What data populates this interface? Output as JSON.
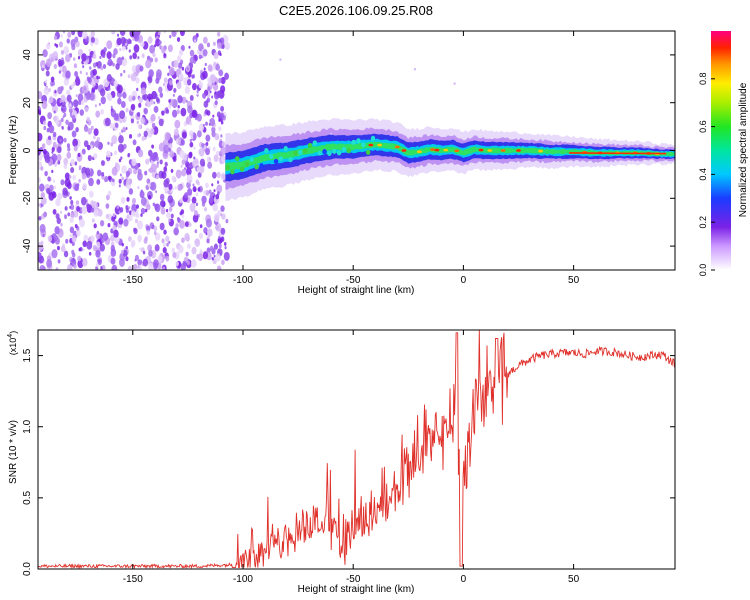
{
  "figure": {
    "title": "C2E5.2026.106.09.25.R08"
  },
  "chart_data": [
    {
      "type": "heatmap",
      "name": "spectrogram",
      "title": "C2E5.2026.106.09.25.R08",
      "xlabel": "Height of straight line (km)",
      "ylabel": "Frequency (Hz)",
      "xlim": [
        -193,
        96
      ],
      "ylim": [
        -50,
        50
      ],
      "xticks": [
        -150,
        -100,
        -50,
        0,
        50
      ],
      "yticks": [
        -40,
        -20,
        0,
        20,
        40
      ],
      "xtick_labels": [
        "-150",
        "-100",
        "-50",
        "0",
        "50"
      ],
      "ytick_labels": [
        "-40",
        "-20",
        "0",
        "20",
        "40"
      ],
      "noise_region_x": [
        -193,
        -107
      ],
      "signal_track": {
        "x": [
          -108,
          -100,
          -90,
          -80,
          -70,
          -60,
          -50,
          -40,
          -30,
          -25,
          -20,
          -15,
          -10,
          -5,
          0,
          5,
          10,
          20,
          30,
          40,
          50,
          60,
          70,
          80,
          90,
          96
        ],
        "freq": [
          -7,
          -6,
          -3,
          -2,
          0,
          1.5,
          1.5,
          2.5,
          1.5,
          -1,
          -0.5,
          0.5,
          0,
          0.5,
          -1,
          0.5,
          0,
          0,
          0,
          -0.5,
          -0.5,
          -1,
          -1,
          -1,
          -1.5,
          -1.5
        ]
      },
      "colorbar": {
        "label": "Normalized spectral amplitude",
        "range": [
          0,
          1
        ],
        "ticks": [
          0.0,
          0.2,
          0.4,
          0.6,
          0.8
        ],
        "tick_labels": [
          "0.0",
          "0.2",
          "0.4",
          "0.6",
          "0.8"
        ]
      }
    },
    {
      "type": "line",
      "name": "snr",
      "xlabel": "Height of straight line (km)",
      "ylabel": "SNR (10 * v/v)",
      "scale_label": "(x10",
      "scale_exp": "4",
      "scale_close": ")",
      "xlim": [
        -193,
        96
      ],
      "ylim": [
        0,
        1.68
      ],
      "xticks": [
        -150,
        -100,
        -50,
        0,
        50
      ],
      "yticks": [
        0.0,
        0.5,
        1.0,
        1.5
      ],
      "xtick_labels": [
        "-150",
        "-100",
        "-50",
        "0",
        "50"
      ],
      "ytick_labels": [
        "0.0",
        "0.5",
        "1.0",
        "1.5"
      ],
      "color": "#e0302a",
      "series": [
        {
          "name": "SNR",
          "x": [
            -193,
            -150,
            -120,
            -105,
            -100,
            -95,
            -90,
            -85,
            -80,
            -75,
            -70,
            -67,
            -65,
            -60,
            -55,
            -50,
            -45,
            -40,
            -35,
            -30,
            -25,
            -20,
            -15,
            -10,
            -7,
            -5,
            -3,
            -1,
            1,
            3,
            5,
            8,
            10,
            12,
            15,
            18,
            20,
            25,
            30,
            35,
            40,
            45,
            50,
            55,
            60,
            65,
            70,
            75,
            80,
            85,
            90,
            96
          ],
          "y": [
            0.02,
            0.02,
            0.02,
            0.03,
            0.06,
            0.09,
            0.12,
            0.16,
            0.22,
            0.28,
            0.31,
            0.35,
            0.32,
            0.28,
            0.22,
            0.27,
            0.35,
            0.42,
            0.47,
            0.55,
            0.65,
            0.78,
            0.88,
            0.95,
            1.0,
            0.9,
            1.05,
            0.45,
            0.6,
            0.98,
            1.1,
            1.18,
            1.22,
            1.25,
            1.3,
            1.34,
            1.37,
            1.43,
            1.47,
            1.5,
            1.51,
            1.52,
            1.52,
            1.51,
            1.53,
            1.53,
            1.52,
            1.5,
            1.49,
            1.5,
            1.51,
            1.44
          ]
        }
      ]
    }
  ]
}
